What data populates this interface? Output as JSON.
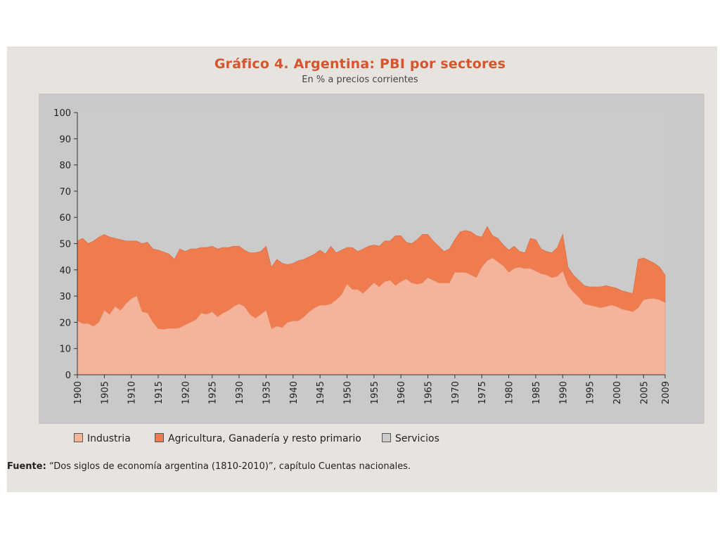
{
  "chart_data": {
    "type": "area",
    "title": "Gráfico 4. Argentina: PBI por sectores",
    "subtitle": "En % a precios corrientes",
    "ylim": [
      0,
      100
    ],
    "yticks": [
      0,
      10,
      20,
      30,
      40,
      50,
      60,
      70,
      80,
      90,
      100
    ],
    "xlim": [
      1900,
      2009
    ],
    "xticks": [
      "1900",
      "1905",
      "1910",
      "1915",
      "1920",
      "1925",
      "1930",
      "1935",
      "1940",
      "1945",
      "1950",
      "1955",
      "1960",
      "1965",
      "1970",
      "1975",
      "1980",
      "1985",
      "1990",
      "1995",
      "2000",
      "2005",
      "2009"
    ],
    "stacked": true,
    "x": [
      1900,
      1901,
      1902,
      1903,
      1904,
      1905,
      1906,
      1907,
      1908,
      1909,
      1910,
      1911,
      1912,
      1913,
      1914,
      1915,
      1916,
      1917,
      1918,
      1919,
      1920,
      1921,
      1922,
      1923,
      1924,
      1925,
      1926,
      1927,
      1928,
      1929,
      1930,
      1931,
      1932,
      1933,
      1934,
      1935,
      1936,
      1937,
      1938,
      1939,
      1940,
      1941,
      1942,
      1943,
      1944,
      1945,
      1946,
      1947,
      1948,
      1949,
      1950,
      1951,
      1952,
      1953,
      1954,
      1955,
      1956,
      1957,
      1958,
      1959,
      1960,
      1961,
      1962,
      1963,
      1964,
      1965,
      1966,
      1967,
      1968,
      1969,
      1970,
      1971,
      1972,
      1973,
      1974,
      1975,
      1976,
      1977,
      1978,
      1979,
      1980,
      1981,
      1982,
      1983,
      1984,
      1985,
      1986,
      1987,
      1988,
      1989,
      1990,
      1991,
      1992,
      1993,
      1994,
      1995,
      1996,
      1997,
      1998,
      1999,
      2000,
      2001,
      2002,
      2003,
      2004,
      2005,
      2006,
      2007,
      2008,
      2009
    ],
    "series": [
      {
        "name": "Industria",
        "color": "#f5b49a",
        "values": [
          20.5,
          19.5,
          19.5,
          18.5,
          20,
          24.5,
          23,
          26,
          24.5,
          27,
          29,
          30,
          24,
          23.5,
          20,
          17.5,
          17.3,
          17.7,
          17.6,
          17.9,
          19,
          20,
          21,
          23.5,
          23,
          24,
          22,
          23.5,
          24.5,
          26,
          27,
          26,
          23,
          21.5,
          23,
          24.5,
          17.5,
          18.5,
          18,
          20,
          20.5,
          20.5,
          22,
          24,
          25.5,
          26.5,
          26.5,
          27,
          28.5,
          30.5,
          34.5,
          32.5,
          32.5,
          31,
          33,
          35,
          33.5,
          35.5,
          36,
          34,
          35.5,
          36.5,
          35,
          34.5,
          35,
          37,
          36,
          35,
          35,
          35,
          39,
          39,
          39,
          38,
          37,
          41,
          43.5,
          44.5,
          43,
          41.5,
          39,
          40.5,
          41,
          40.5,
          40.5,
          39.5,
          38.5,
          38,
          37,
          37.5,
          39.5,
          34,
          31.5,
          29.5,
          27,
          26.5,
          26,
          25.5,
          26,
          26.5,
          26,
          25,
          24.5,
          24,
          25.5,
          28.5,
          29,
          29,
          28.5,
          27.5
        ]
      },
      {
        "name": "Agricultura, Ganadería y resto primario",
        "color": "#ef7c4e",
        "values": [
          30.5,
          32.5,
          30.5,
          32.5,
          32.5,
          29,
          29.5,
          26,
          27,
          24,
          22,
          21,
          26,
          27,
          28,
          30,
          29.5,
          28.3,
          26.4,
          30.1,
          28,
          28,
          27,
          25,
          25.5,
          25,
          26,
          25,
          24,
          23,
          22,
          21.5,
          23.5,
          25,
          24,
          24.5,
          23.5,
          25.5,
          24.5,
          22,
          22,
          23,
          22,
          21,
          20.5,
          21,
          19.5,
          22,
          18,
          17,
          14,
          16,
          14.5,
          17,
          16,
          14.5,
          15.5,
          15.5,
          15,
          19,
          17.5,
          14,
          15,
          17,
          18.5,
          16.5,
          15,
          14,
          12,
          13,
          12.5,
          15.5,
          16,
          16.5,
          16,
          11.5,
          13,
          8.5,
          9,
          8,
          8.5,
          8.5,
          6,
          6,
          11.5,
          12,
          9.5,
          9,
          9.5,
          11,
          14,
          7,
          6.5,
          6.5,
          7,
          7,
          7.5,
          8,
          8,
          7,
          7,
          7,
          7,
          7,
          18.5,
          16,
          14.5,
          13.5,
          12.5,
          10.5
        ]
      },
      {
        "name": "Servicios",
        "color": "#cbcbcb"
      }
    ],
    "legend_position": "bottom",
    "source_label": "Fuente:",
    "source_text": "“Dos siglos de economía argentina (1810-2010)”, capítulo Cuentas nacionales."
  }
}
